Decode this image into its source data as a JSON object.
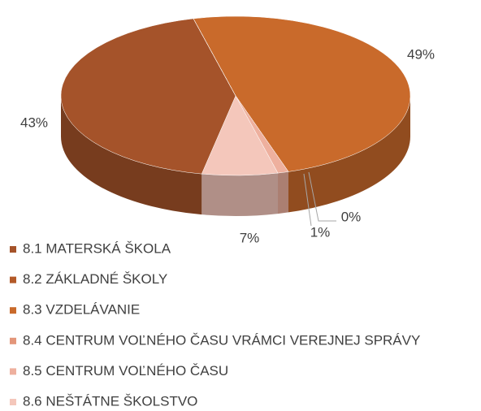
{
  "chart_data": {
    "type": "pie3d",
    "categories": [
      "8.1 MATERSKÁ ŠKOLA",
      "8.2 ZÁKLADNÉ ŠKOLY",
      "8.3 VZDELÁVANIE",
      "8.4 CENTRUM VOĽNÉHO ČASU VRÁMCI VEREJNEJ SPRÁVY",
      "8.5 CENTRUM VOĽNÉHO ČASU",
      "8.6 NEŠTÁTNE ŠKOLSTVO"
    ],
    "values": [
      43,
      0,
      49,
      0,
      1,
      7
    ],
    "value_labels": [
      "43%",
      null,
      "49%",
      "0%",
      "1%",
      "7%"
    ],
    "colors": [
      "#a5532a",
      "#b35a28",
      "#c96a2b",
      "#e3967a",
      "#eeb09e",
      "#f4c7bb"
    ]
  }
}
